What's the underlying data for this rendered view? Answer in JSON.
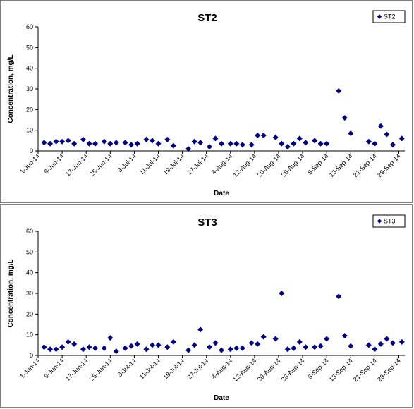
{
  "colors": {
    "marker": "#000080",
    "axis": "#000000",
    "panel_border": "#808080"
  },
  "chart_data": [
    {
      "type": "scatter",
      "title": "ST2",
      "xlabel": "Date",
      "ylabel": "Concentration, mg/L",
      "ylim": [
        0,
        60
      ],
      "yticks": [
        "0",
        "10",
        "20",
        "30",
        "40",
        "50",
        "60"
      ],
      "xlim": [
        "2014-06-01",
        "2014-10-01"
      ],
      "xtick_dates": [
        "2014-06-01",
        "2014-06-09",
        "2014-06-17",
        "2014-06-25",
        "2014-07-03",
        "2014-07-11",
        "2014-07-19",
        "2014-07-27",
        "2014-08-04",
        "2014-08-12",
        "2014-08-20",
        "2014-08-28",
        "2014-09-05",
        "2014-09-13",
        "2014-09-21",
        "2014-09-29"
      ],
      "xticks": [
        "1-Jun-14",
        "9-Jun-14",
        "17-Jun-14",
        "25-Jun-14",
        "3-Jul-14",
        "11-Jul-14",
        "19-Jul-14",
        "27-Jul-14",
        "4-Aug-14",
        "12-Aug-14",
        "20-Aug-14",
        "28-Aug-14",
        "5-Sep-14",
        "13-Sep-14",
        "21-Sep-14",
        "29-Sep-14"
      ],
      "legend": {
        "position": "top-right"
      },
      "series": [
        {
          "name": "ST2",
          "marker": "diamond",
          "points": [
            {
              "x": "2014-06-03",
              "y": 4
            },
            {
              "x": "2014-06-05",
              "y": 3.5
            },
            {
              "x": "2014-06-07",
              "y": 4.5
            },
            {
              "x": "2014-06-09",
              "y": 4.5
            },
            {
              "x": "2014-06-11",
              "y": 5
            },
            {
              "x": "2014-06-13",
              "y": 3.5
            },
            {
              "x": "2014-06-16",
              "y": 5.5
            },
            {
              "x": "2014-06-18",
              "y": 3.5
            },
            {
              "x": "2014-06-20",
              "y": 3.5
            },
            {
              "x": "2014-06-23",
              "y": 4.5
            },
            {
              "x": "2014-06-25",
              "y": 3.5
            },
            {
              "x": "2014-06-27",
              "y": 4
            },
            {
              "x": "2014-06-30",
              "y": 4
            },
            {
              "x": "2014-07-02",
              "y": 3
            },
            {
              "x": "2014-07-04",
              "y": 3.5
            },
            {
              "x": "2014-07-07",
              "y": 5.5
            },
            {
              "x": "2014-07-09",
              "y": 5
            },
            {
              "x": "2014-07-11",
              "y": 3.5
            },
            {
              "x": "2014-07-14",
              "y": 5.5
            },
            {
              "x": "2014-07-16",
              "y": 2.5
            },
            {
              "x": "2014-07-21",
              "y": 1
            },
            {
              "x": "2014-07-23",
              "y": 4.5
            },
            {
              "x": "2014-07-25",
              "y": 4
            },
            {
              "x": "2014-07-28",
              "y": 2
            },
            {
              "x": "2014-07-30",
              "y": 6
            },
            {
              "x": "2014-08-01",
              "y": 3.5
            },
            {
              "x": "2014-08-04",
              "y": 3.5
            },
            {
              "x": "2014-08-06",
              "y": 3.5
            },
            {
              "x": "2014-08-08",
              "y": 3
            },
            {
              "x": "2014-08-11",
              "y": 3
            },
            {
              "x": "2014-08-13",
              "y": 7.5
            },
            {
              "x": "2014-08-15",
              "y": 7.5
            },
            {
              "x": "2014-08-19",
              "y": 6.5
            },
            {
              "x": "2014-08-21",
              "y": 3.5
            },
            {
              "x": "2014-08-23",
              "y": 2
            },
            {
              "x": "2014-08-25",
              "y": 3.5
            },
            {
              "x": "2014-08-27",
              "y": 6
            },
            {
              "x": "2014-08-29",
              "y": 4
            },
            {
              "x": "2014-09-01",
              "y": 5
            },
            {
              "x": "2014-09-03",
              "y": 3.5
            },
            {
              "x": "2014-09-05",
              "y": 3.5
            },
            {
              "x": "2014-09-09",
              "y": 29
            },
            {
              "x": "2014-09-11",
              "y": 16
            },
            {
              "x": "2014-09-13",
              "y": 8.5
            },
            {
              "x": "2014-09-19",
              "y": 4.5
            },
            {
              "x": "2014-09-21",
              "y": 3.5
            },
            {
              "x": "2014-09-23",
              "y": 12
            },
            {
              "x": "2014-09-25",
              "y": 8
            },
            {
              "x": "2014-09-27",
              "y": 3
            },
            {
              "x": "2014-09-30",
              "y": 6
            }
          ]
        }
      ]
    },
    {
      "type": "scatter",
      "title": "ST3",
      "xlabel": "Date",
      "ylabel": "Concentration, mg/L",
      "ylim": [
        0,
        60
      ],
      "yticks": [
        "0",
        "10",
        "20",
        "30",
        "40",
        "50",
        "60"
      ],
      "xlim": [
        "2014-06-01",
        "2014-10-01"
      ],
      "xtick_dates": [
        "2014-06-01",
        "2014-06-09",
        "2014-06-17",
        "2014-06-25",
        "2014-07-03",
        "2014-07-11",
        "2014-07-19",
        "2014-07-27",
        "2014-08-04",
        "2014-08-12",
        "2014-08-20",
        "2014-08-28",
        "2014-09-05",
        "2014-09-13",
        "2014-09-21",
        "2014-09-29"
      ],
      "xticks": [
        "1-Jun-14",
        "9-Jun-14",
        "17-Jun-14",
        "25-Jun-14",
        "3-Jul-14",
        "11-Jul-14",
        "19-Jul-14",
        "27-Jul-14",
        "4-Aug-14",
        "12-Aug-14",
        "20-Aug-14",
        "28-Aug-14",
        "5-Sep-14",
        "13-Sep-14",
        "21-Sep-14",
        "29-Sep-14"
      ],
      "legend": {
        "position": "top-right"
      },
      "series": [
        {
          "name": "ST3",
          "marker": "diamond",
          "points": [
            {
              "x": "2014-06-03",
              "y": 4
            },
            {
              "x": "2014-06-05",
              "y": 3
            },
            {
              "x": "2014-06-07",
              "y": 3
            },
            {
              "x": "2014-06-09",
              "y": 4
            },
            {
              "x": "2014-06-11",
              "y": 6.5
            },
            {
              "x": "2014-06-13",
              "y": 5.5
            },
            {
              "x": "2014-06-16",
              "y": 3
            },
            {
              "x": "2014-06-18",
              "y": 4
            },
            {
              "x": "2014-06-20",
              "y": 3.5
            },
            {
              "x": "2014-06-23",
              "y": 3.5
            },
            {
              "x": "2014-06-25",
              "y": 8.5
            },
            {
              "x": "2014-06-27",
              "y": 2
            },
            {
              "x": "2014-06-30",
              "y": 3.5
            },
            {
              "x": "2014-07-02",
              "y": 4.5
            },
            {
              "x": "2014-07-04",
              "y": 5.5
            },
            {
              "x": "2014-07-07",
              "y": 3
            },
            {
              "x": "2014-07-09",
              "y": 5
            },
            {
              "x": "2014-07-11",
              "y": 5
            },
            {
              "x": "2014-07-14",
              "y": 4
            },
            {
              "x": "2014-07-16",
              "y": 6.5
            },
            {
              "x": "2014-07-21",
              "y": 2.5
            },
            {
              "x": "2014-07-23",
              "y": 5
            },
            {
              "x": "2014-07-25",
              "y": 12.5
            },
            {
              "x": "2014-07-28",
              "y": 4
            },
            {
              "x": "2014-07-30",
              "y": 6
            },
            {
              "x": "2014-08-01",
              "y": 2.5
            },
            {
              "x": "2014-08-04",
              "y": 3
            },
            {
              "x": "2014-08-06",
              "y": 3.5
            },
            {
              "x": "2014-08-08",
              "y": 3.5
            },
            {
              "x": "2014-08-11",
              "y": 6
            },
            {
              "x": "2014-08-13",
              "y": 5.5
            },
            {
              "x": "2014-08-15",
              "y": 9
            },
            {
              "x": "2014-08-19",
              "y": 8
            },
            {
              "x": "2014-08-21",
              "y": 30
            },
            {
              "x": "2014-08-23",
              "y": 3
            },
            {
              "x": "2014-08-25",
              "y": 3.5
            },
            {
              "x": "2014-08-27",
              "y": 6.5
            },
            {
              "x": "2014-08-29",
              "y": 4
            },
            {
              "x": "2014-09-01",
              "y": 4
            },
            {
              "x": "2014-09-03",
              "y": 4.5
            },
            {
              "x": "2014-09-05",
              "y": 8
            },
            {
              "x": "2014-09-09",
              "y": 28.5
            },
            {
              "x": "2014-09-11",
              "y": 9.5
            },
            {
              "x": "2014-09-13",
              "y": 4.5
            },
            {
              "x": "2014-09-19",
              "y": 5
            },
            {
              "x": "2014-09-21",
              "y": 3
            },
            {
              "x": "2014-09-23",
              "y": 5.5
            },
            {
              "x": "2014-09-25",
              "y": 8
            },
            {
              "x": "2014-09-27",
              "y": 6
            },
            {
              "x": "2014-09-30",
              "y": 6.5
            }
          ]
        }
      ]
    }
  ]
}
